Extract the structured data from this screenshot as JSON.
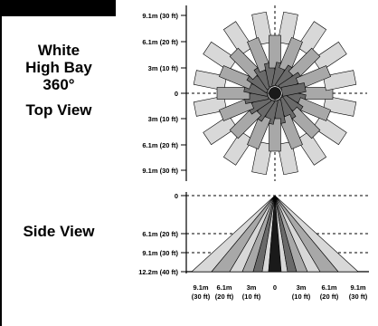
{
  "legend": {
    "line1": "White",
    "line2": "High Bay",
    "line3": "360°",
    "top_view": "Top View",
    "side_view": "Side View"
  },
  "top_view": {
    "labels_above": [
      "9.1m (30 ft)",
      "6.1m (20 ft)",
      "3m (10 ft)"
    ],
    "center": "0",
    "labels_below": [
      "3m (10 ft)",
      "6.1m (20 ft)",
      "9.1m (30 ft)"
    ]
  },
  "side_view": {
    "y_labels": [
      "0",
      "6.1m (20 ft)",
      "9.1m (30 ft)",
      "12.2m (40 ft)"
    ],
    "x_labels": [
      {
        "top": "9.1m",
        "bottom": "(30 ft)"
      },
      {
        "top": "6.1m",
        "bottom": "(20 ft)"
      },
      {
        "top": "3m",
        "bottom": "(10 ft)"
      },
      {
        "top": "0",
        "bottom": ""
      },
      {
        "top": "3m",
        "bottom": "(10 ft)"
      },
      {
        "top": "6.1m",
        "bottom": "(20 ft)"
      },
      {
        "top": "9.1m",
        "bottom": "(30 ft)"
      }
    ]
  },
  "colors": {
    "outer": "#d8d8d8",
    "middle": "#a8a8a8",
    "inner": "#6a6a6a",
    "center": "#1a1a1a"
  }
}
